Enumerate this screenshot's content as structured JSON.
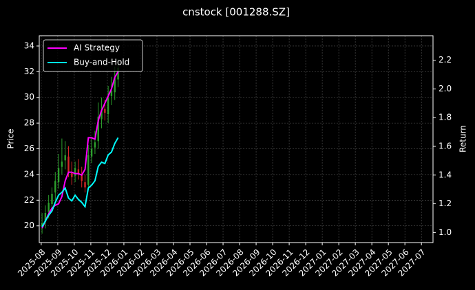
{
  "chart_data": {
    "type": "candlestick",
    "title": "cnstock [001288.SZ]",
    "y_label": "Price",
    "y2_label": "Return",
    "x": [
      0.05,
      0.25,
      0.45,
      0.65,
      0.85,
      1.05,
      1.25,
      1.45,
      1.65,
      1.85,
      2.05,
      2.25,
      2.45,
      2.65,
      2.85,
      3.05,
      3.25,
      3.45,
      3.65,
      3.85,
      4.05,
      4.25,
      4.45,
      4.65
    ],
    "open": [
      20.0,
      20.3,
      21.1,
      21.7,
      22.6,
      23.4,
      24.6,
      25.1,
      25.4,
      24.1,
      23.9,
      24.4,
      24.0,
      23.4,
      23.2,
      25.4,
      26.1,
      26.6,
      28.3,
      29.1,
      28.7,
      30.1,
      30.4,
      31.4
    ],
    "high": [
      21.0,
      21.6,
      22.4,
      23.0,
      24.2,
      25.6,
      26.8,
      26.6,
      26.2,
      25.0,
      25.0,
      25.2,
      24.6,
      24.0,
      26.3,
      26.8,
      27.4,
      29.6,
      30.0,
      29.8,
      30.9,
      31.6,
      32.4,
      33.0
    ],
    "low": [
      19.4,
      19.8,
      20.6,
      21.2,
      22.0,
      22.9,
      24.0,
      24.4,
      23.8,
      23.2,
      23.4,
      23.6,
      23.0,
      22.6,
      22.8,
      24.9,
      25.6,
      26.0,
      27.6,
      28.2,
      28.0,
      29.4,
      29.8,
      30.8
    ],
    "close": [
      20.2,
      21.0,
      21.8,
      22.5,
      23.5,
      24.5,
      25.0,
      25.5,
      24.2,
      23.8,
      24.5,
      24.0,
      23.5,
      23.0,
      25.5,
      26.0,
      26.5,
      28.5,
      29.0,
      28.8,
      30.0,
      30.5,
      31.5,
      32.3
    ],
    "up_color": "#2ca02c",
    "down_color": "#d62728",
    "series": [
      {
        "name": "AI Strategy",
        "color": "#ff00ff",
        "axis": "y2",
        "values": [
          1.03,
          1.08,
          1.13,
          1.17,
          1.19,
          1.2,
          1.25,
          1.36,
          1.42,
          1.42,
          1.41,
          1.41,
          1.4,
          1.44,
          1.66,
          1.66,
          1.65,
          1.78,
          1.85,
          1.9,
          1.95,
          2.0,
          2.08,
          2.12
        ]
      },
      {
        "name": "Buy-and-Hold",
        "color": "#00ffff",
        "axis": "y2",
        "values": [
          1.04,
          1.08,
          1.12,
          1.15,
          1.21,
          1.26,
          1.28,
          1.31,
          1.24,
          1.22,
          1.26,
          1.23,
          1.21,
          1.18,
          1.31,
          1.33,
          1.36,
          1.46,
          1.49,
          1.48,
          1.54,
          1.56,
          1.62,
          1.66
        ]
      }
    ],
    "xlim": [
      -0.12,
      23.7
    ],
    "xticks": [
      {
        "value": 0,
        "label": "2025-08"
      },
      {
        "value": 1,
        "label": "2025-09"
      },
      {
        "value": 2,
        "label": "2025-10"
      },
      {
        "value": 3,
        "label": "2025-11"
      },
      {
        "value": 4,
        "label": "2025-12"
      },
      {
        "value": 5,
        "label": "2026-01"
      },
      {
        "value": 6,
        "label": "2026-02"
      },
      {
        "value": 7,
        "label": "2026-03"
      },
      {
        "value": 8,
        "label": "2026-04"
      },
      {
        "value": 9,
        "label": "2026-05"
      },
      {
        "value": 10,
        "label": "2026-06"
      },
      {
        "value": 11,
        "label": "2026-07"
      },
      {
        "value": 12,
        "label": "2026-08"
      },
      {
        "value": 13,
        "label": "2026-09"
      },
      {
        "value": 14,
        "label": "2026-10"
      },
      {
        "value": 15,
        "label": "2026-11"
      },
      {
        "value": 16,
        "label": "2026-12"
      },
      {
        "value": 17,
        "label": "2027-01"
      },
      {
        "value": 18,
        "label": "2027-02"
      },
      {
        "value": 19,
        "label": "2027-03"
      },
      {
        "value": 20,
        "label": "2027-04"
      },
      {
        "value": 21,
        "label": "2027-05"
      },
      {
        "value": 22,
        "label": "2027-06"
      },
      {
        "value": 23,
        "label": "2027-07"
      }
    ],
    "ylim": [
      18.7,
      34.8
    ],
    "yticks": [
      20,
      22,
      24,
      26,
      28,
      30,
      32,
      34
    ],
    "y2lim": [
      0.93,
      2.37
    ],
    "y2ticks": [
      {
        "value": 1,
        "label": "1.0"
      },
      {
        "value": 1.2,
        "label": "1.2"
      },
      {
        "value": 1.4,
        "label": "1.4"
      },
      {
        "value": 1.6,
        "label": "1.6"
      },
      {
        "value": 1.8,
        "label": "1.8"
      },
      {
        "value": 2,
        "label": "2.0"
      },
      {
        "value": 2.2,
        "label": "2.2"
      }
    ],
    "grid": true,
    "legend": "upper-left"
  }
}
